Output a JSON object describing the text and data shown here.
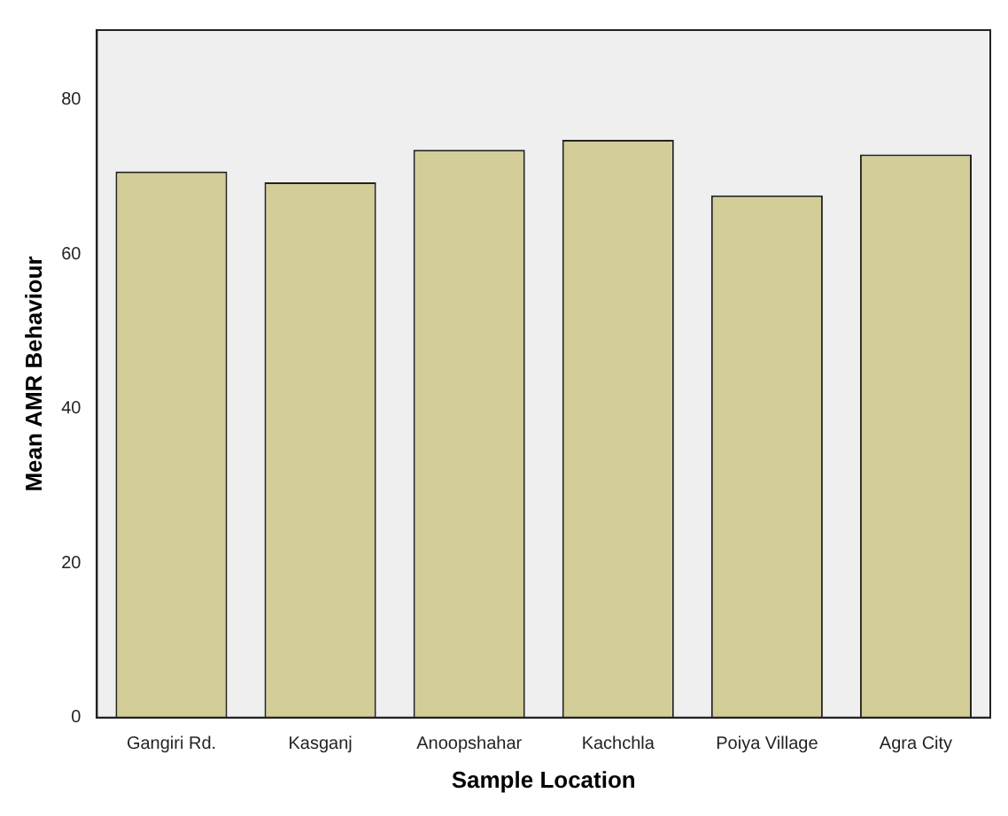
{
  "chart_data": {
    "type": "bar",
    "xlabel": "Sample Location",
    "ylabel": "Mean AMR Behaviour",
    "categories": [
      "Gangiri Rd.",
      "Kasganj",
      "Anoopshahar",
      "Kachchla",
      "Poiya Village",
      "Agra City"
    ],
    "values": [
      70.7,
      69.3,
      73.5,
      74.8,
      67.6,
      72.9
    ],
    "color": "#d3ce98",
    "ylim": [
      0,
      89
    ],
    "yticks": [
      0,
      20,
      40,
      60,
      80
    ],
    "grid": false,
    "legend": false
  }
}
